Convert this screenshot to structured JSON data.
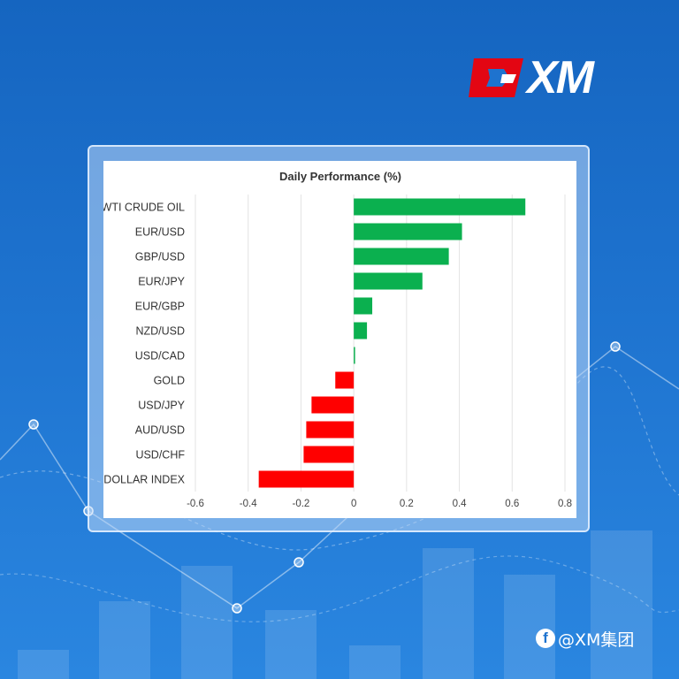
{
  "brand": {
    "logo_text": "XM",
    "watermark_text": "@XM集团",
    "colors": {
      "background": "#1e73cf",
      "logo_red": "#e30613",
      "positive": "#0bb04f",
      "negative": "#ff0000"
    }
  },
  "icons": {
    "social": "facebook-icon"
  },
  "chart_data": {
    "type": "bar",
    "orientation": "horizontal",
    "title": "Daily Performance (%)",
    "categories": [
      "WTI CRUDE OIL",
      "EUR/USD",
      "GBP/USD",
      "EUR/JPY",
      "EUR/GBP",
      "NZD/USD",
      "USD/CAD",
      "GOLD",
      "USD/JPY",
      "AUD/USD",
      "USD/CHF",
      "DOLLAR INDEX"
    ],
    "values": [
      0.65,
      0.41,
      0.36,
      0.26,
      0.07,
      0.05,
      0.005,
      -0.07,
      -0.16,
      -0.18,
      -0.19,
      -0.36
    ],
    "xlim": [
      -0.6,
      0.8
    ],
    "ticks": [
      "-0.6",
      "-0.4",
      "-0.2",
      "0",
      "0.2",
      "0.4",
      "0.6",
      "0.8"
    ],
    "grid": true,
    "legend": "none",
    "colors": {
      "positive": "#0bb04f",
      "negative": "#ff0000"
    }
  }
}
